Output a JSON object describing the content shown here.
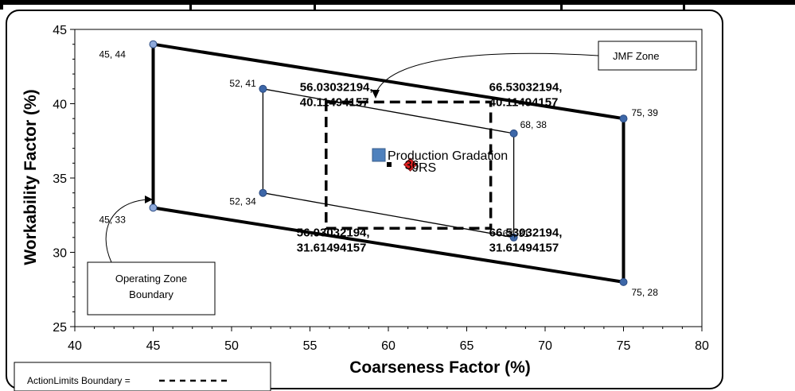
{
  "chart_data": {
    "type": "scatter",
    "xlabel": "Coarseness Factor (%)",
    "ylabel": "Workability Factor (%)",
    "xlim": [
      40,
      80
    ],
    "ylim": [
      25,
      45
    ],
    "xticks": [
      "40",
      "45",
      "50",
      "55",
      "60",
      "65",
      "70",
      "75",
      "80"
    ],
    "yticks": [
      "25",
      "30",
      "35",
      "40",
      "45"
    ],
    "grid": false,
    "operating_zone": {
      "points": [
        {
          "x": 45,
          "y": 44,
          "label": "45, 44"
        },
        {
          "x": 75,
          "y": 39,
          "label": "75, 39"
        },
        {
          "x": 75,
          "y": 28,
          "label": "75, 28"
        },
        {
          "x": 45,
          "y": 33,
          "label": "45, 33"
        }
      ],
      "color": "#000000"
    },
    "inner_zone": {
      "points": [
        {
          "x": 52,
          "y": 41,
          "label": "52, 41"
        },
        {
          "x": 68,
          "y": 38,
          "label": "68, 38"
        },
        {
          "x": 68,
          "y": 31,
          "label": "68, 31"
        },
        {
          "x": 52,
          "y": 34,
          "label": "52, 34"
        }
      ]
    },
    "action_limits": {
      "points": [
        {
          "x": 56.03032194,
          "y": 40.11494157,
          "label_lines": [
            "56.03032194,",
            "40.11494157"
          ]
        },
        {
          "x": 66.53032194,
          "y": 40.11494157,
          "label_lines": [
            "66.53032194,",
            "40.11494157"
          ]
        },
        {
          "x": 66.53032194,
          "y": 31.61494157,
          "label_lines": [
            "66.53032194,",
            "31.61494157"
          ]
        },
        {
          "x": 56.03032194,
          "y": 31.61494157,
          "label_lines": [
            "56.03032194,",
            "31.61494157"
          ]
        }
      ]
    },
    "production_gradation": {
      "x": 61.4,
      "y": 35.9,
      "label": "36",
      "color": "#e02020"
    },
    "marker_label": "JRS",
    "legend": {
      "entry": "Production Gradation",
      "color": "#4f81bd",
      "placement": "center"
    },
    "point_color": "#3d67a8",
    "corner_point_color": "#8ea9db",
    "callouts": {
      "jmf": "JMF Zone",
      "operating": [
        "Operating Zone",
        "Boundary"
      ],
      "action": "ActionLimits Boundary ="
    }
  }
}
